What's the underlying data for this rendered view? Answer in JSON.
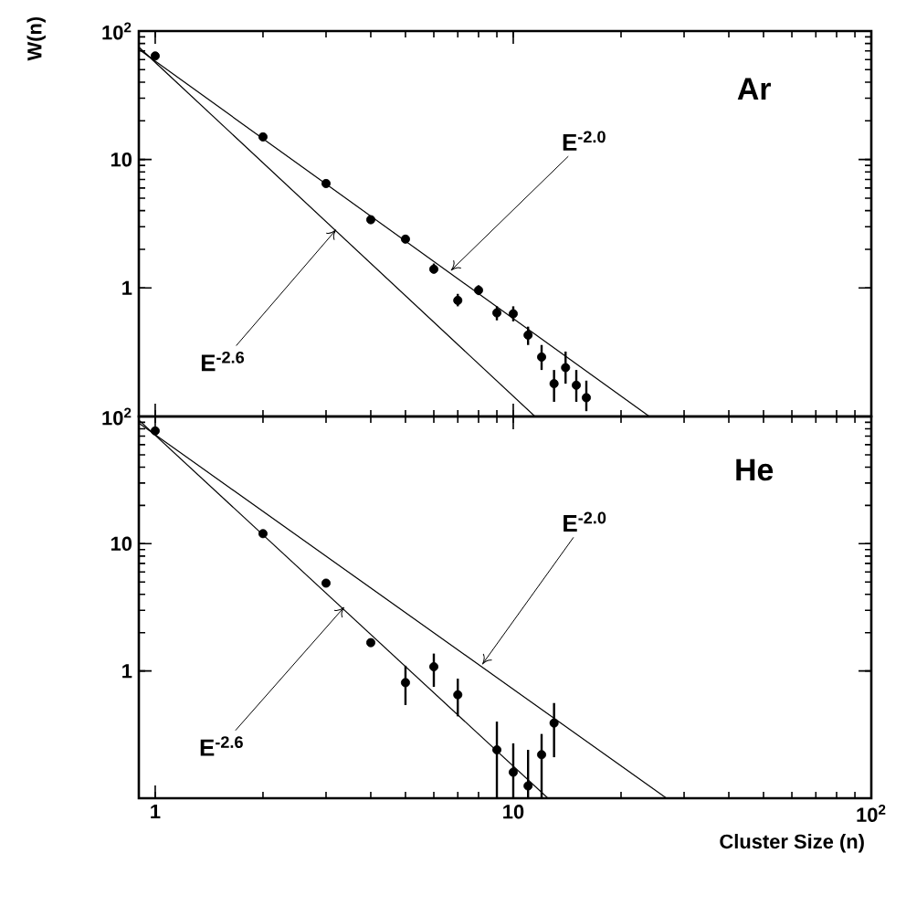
{
  "chart_data": [
    {
      "type": "scatter",
      "log": "xy",
      "tick_labels": "y",
      "ylabel": "W(n)",
      "xlim": [
        0.9,
        100
      ],
      "ylim": [
        0.1,
        100
      ],
      "xticks": [
        1,
        10,
        100
      ],
      "yticks": [
        1,
        10,
        {
          "value": 100,
          "label": "10$^{2}$"
        }
      ],
      "series": [
        {
          "marker": "circle",
          "color": "#000000",
          "x": [
            1,
            2,
            3,
            4,
            5,
            6,
            7,
            8,
            9,
            10,
            11,
            12,
            13,
            14,
            15,
            16
          ],
          "values": [
            64,
            15,
            6.5,
            3.4,
            2.4,
            1.4,
            0.8,
            0.96,
            0.64,
            0.63,
            0.43,
            0.29,
            0.18,
            0.24,
            0.175,
            0.14
          ],
          "errors": [
            null,
            null,
            null,
            null,
            null,
            [
              1.3,
              1.55
            ],
            [
              0.72,
              0.9
            ],
            [
              0.88,
              1.05
            ],
            [
              0.56,
              0.72
            ],
            [
              0.55,
              0.72
            ],
            [
              0.36,
              0.5
            ],
            [
              0.23,
              0.36
            ],
            [
              0.13,
              0.23
            ],
            [
              0.18,
              0.32
            ],
            [
              0.13,
              0.23
            ],
            [
              0.11,
              0.19
            ]
          ]
        },
        {
          "type": "line",
          "marker": "none",
          "color": "#000000",
          "x": [
            0.9,
            24
          ],
          "values": [
            72,
            0.1
          ]
        },
        {
          "type": "line",
          "marker": "none",
          "color": "#000000",
          "x": [
            0.9,
            11.5
          ],
          "values": [
            75,
            0.1
          ]
        }
      ],
      "annotations": [
        "Ar",
        {
          "text": "E$^{-2.0}$",
          "x": 6.7,
          "y": 1.37
        },
        {
          "text": "E$^{-2.6}$",
          "x": 3.2,
          "y": 2.84
        }
      ]
    },
    {
      "type": "scatter",
      "log": "xy",
      "xlabel": "Cluster Size (n)",
      "xlim": [
        0.9,
        100
      ],
      "ylim": [
        0.1,
        100
      ],
      "xticks": [
        1,
        10,
        {
          "value": 100,
          "label": "10$^{2}$"
        }
      ],
      "yticks": [
        1,
        10,
        {
          "value": 100,
          "label": "10$^{2}$"
        }
      ],
      "series": [
        {
          "marker": "circle",
          "color": "#000000",
          "x": [
            1,
            2,
            3,
            4,
            5,
            6,
            7,
            9,
            10,
            11,
            12,
            13
          ],
          "values": [
            77,
            12,
            4.9,
            1.67,
            0.81,
            1.08,
            0.65,
            0.24,
            0.16,
            0.125,
            0.22,
            0.39
          ],
          "errors": [
            null,
            null,
            null,
            null,
            [
              0.54,
              1.1
            ],
            [
              0.75,
              1.37
            ],
            [
              0.44,
              0.87
            ],
            [
              0.1,
              0.4
            ],
            [
              0.1,
              0.27
            ],
            [
              0.1,
              0.24
            ],
            [
              0.1,
              0.32
            ],
            [
              0.21,
              0.56
            ]
          ]
        },
        {
          "type": "line",
          "marker": "none",
          "color": "#000000",
          "x": [
            0.9,
            26.8
          ],
          "values": [
            88.7,
            0.1
          ]
        },
        {
          "type": "line",
          "marker": "none",
          "color": "#000000",
          "x": [
            0.9,
            12.5
          ],
          "values": [
            93.6,
            0.1
          ]
        }
      ],
      "annotations": [
        "He",
        {
          "text": "E$^{-2.0}$",
          "x": 8.2,
          "y": 1.13
        },
        {
          "text": "E$^{-2.6}$",
          "x": 3.37,
          "y": 3.17
        }
      ]
    }
  ]
}
